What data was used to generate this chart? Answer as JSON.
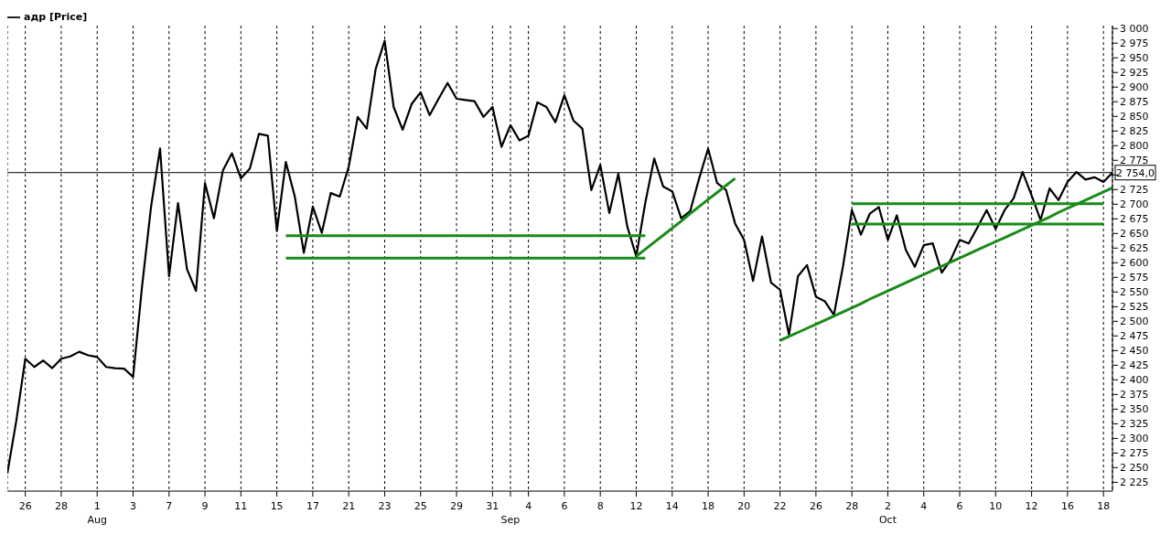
{
  "chart_data": {
    "type": "line",
    "legend": "top left",
    "grid": "x",
    "line_style": "solid",
    "marker": "none",
    "categories": [
      null,
      null,
      "26",
      null,
      null,
      null,
      "28",
      null,
      null,
      null,
      "1\nAug",
      null,
      null,
      null,
      "3",
      null,
      null,
      null,
      "7",
      null,
      null,
      null,
      "9",
      null,
      null,
      null,
      "11",
      null,
      null,
      null,
      "15",
      null,
      null,
      null,
      "17",
      null,
      null,
      null,
      "21",
      null,
      null,
      null,
      "23",
      null,
      null,
      null,
      "25",
      null,
      null,
      null,
      "29",
      null,
      null,
      null,
      "31",
      null,
      "\nSep",
      null,
      "4",
      null,
      null,
      null,
      "6",
      null,
      null,
      null,
      "8",
      null,
      null,
      null,
      "12",
      null,
      null,
      null,
      "14",
      null,
      null,
      null,
      "18",
      null,
      null,
      null,
      "20",
      null,
      null,
      null,
      "22",
      null,
      null,
      null,
      "26",
      null,
      null,
      null,
      "28",
      null,
      null,
      null,
      "2\nOct",
      null,
      null,
      null,
      "4",
      null,
      null,
      null,
      "6",
      null,
      null,
      null,
      "10",
      null,
      null,
      null,
      "12",
      null,
      null,
      null,
      "16",
      null,
      null,
      null,
      "18",
      null
    ],
    "ylim": [
      2210,
      3005
    ],
    "yticks": [
      {
        "value": 2225,
        "label": "2 225"
      },
      {
        "value": 2250,
        "label": "2 250"
      },
      {
        "value": 2275,
        "label": "2 275"
      },
      {
        "value": 2300,
        "label": "2 300"
      },
      {
        "value": 2325,
        "label": "2 325"
      },
      {
        "value": 2350,
        "label": "2 350"
      },
      {
        "value": 2375,
        "label": "2 375"
      },
      {
        "value": 2400,
        "label": "2 400"
      },
      {
        "value": 2425,
        "label": "2 425"
      },
      {
        "value": 2450,
        "label": "2 450"
      },
      {
        "value": 2475,
        "label": "2 475"
      },
      {
        "value": 2500,
        "label": "2 500"
      },
      {
        "value": 2525,
        "label": "2 525"
      },
      {
        "value": 2550,
        "label": "2 550"
      },
      {
        "value": 2575,
        "label": "2 575"
      },
      {
        "value": 2600,
        "label": "2 600"
      },
      {
        "value": 2625,
        "label": "2 625"
      },
      {
        "value": 2650,
        "label": "2 650"
      },
      {
        "value": 2675,
        "label": "2 675"
      },
      {
        "value": 2700,
        "label": "2 700"
      },
      {
        "value": 2725,
        "label": "2 725"
      },
      {
        "value": 2750,
        "label": null
      },
      {
        "value": 2775,
        "label": "2 775"
      },
      {
        "value": 2800,
        "label": "2 800"
      },
      {
        "value": 2825,
        "label": "2 825"
      },
      {
        "value": 2850,
        "label": "2 850"
      },
      {
        "value": 2875,
        "label": "2 875"
      },
      {
        "value": 2900,
        "label": "2 900"
      },
      {
        "value": 2925,
        "label": "2 925"
      },
      {
        "value": 2950,
        "label": "2 950"
      },
      {
        "value": 2975,
        "label": "2 975"
      },
      {
        "value": 3000,
        "label": "3 000"
      }
    ],
    "ref_lines": [
      {
        "axis": "y",
        "value": 2754,
        "label": "2 754,0",
        "color": "#000000"
      }
    ],
    "series": [
      {
        "name": "адр [Price]",
        "color": "#000000",
        "values": [
          2240,
          2330,
          2436,
          2422,
          2433,
          2420,
          2436,
          2440,
          2448,
          2442,
          2439,
          2422,
          2420,
          2419,
          2405,
          2560,
          2696,
          2795,
          2577,
          2702,
          2589,
          2552,
          2736,
          2676,
          2758,
          2787,
          2744,
          2761,
          2820,
          2817,
          2654,
          2772,
          2713,
          2617,
          2696,
          2651,
          2719,
          2713,
          2764,
          2849,
          2829,
          2931,
          2979,
          2866,
          2827,
          2871,
          2891,
          2852,
          2880,
          2907,
          2880,
          2878,
          2876,
          2849,
          2866,
          2798,
          2835,
          2809,
          2817,
          2874,
          2866,
          2840,
          2886,
          2843,
          2829,
          2724,
          2767,
          2685,
          2752,
          2662,
          2611,
          2702,
          2778,
          2730,
          2722,
          2676,
          2688,
          2744,
          2795,
          2736,
          2724,
          2667,
          2639,
          2569,
          2645,
          2566,
          2554,
          2477,
          2577,
          2596,
          2542,
          2534,
          2511,
          2593,
          2690,
          2648,
          2684,
          2695,
          2639,
          2681,
          2622,
          2593,
          2630,
          2633,
          2583,
          2605,
          2639,
          2633,
          2661,
          2690,
          2658,
          2690,
          2710,
          2755,
          2715,
          2673,
          2727,
          2707,
          2738,
          2755,
          2742,
          2746,
          2738,
          2754
        ]
      },
      {
        "color": "#1a8a1a",
        "values": [
          null,
          null,
          null,
          null,
          null,
          null,
          null,
          null,
          null,
          null,
          null,
          null,
          null,
          null,
          null,
          null,
          null,
          null,
          null,
          null,
          null,
          null,
          null,
          null,
          null,
          null,
          null,
          null,
          null,
          null,
          null,
          2646,
          2646,
          2646,
          2646,
          2646,
          2646,
          2646,
          2646,
          2646,
          2646,
          2646,
          2646,
          2646,
          2646,
          2646,
          2646,
          2646,
          2646,
          2646,
          2646,
          2646,
          2646,
          2646,
          2646,
          2646,
          2646,
          2646,
          2646,
          2646,
          2646,
          2646,
          2646,
          2646,
          2646,
          2646,
          2646,
          2646,
          2646,
          2646,
          2646,
          2646,
          null,
          null,
          null,
          null,
          null,
          null,
          null,
          null,
          null,
          null,
          null,
          null,
          null,
          null,
          null,
          null,
          null,
          null,
          null,
          null,
          null,
          null,
          null,
          null,
          null,
          null,
          null,
          null,
          null,
          null,
          null,
          null,
          null,
          null,
          null,
          null,
          null,
          null,
          null,
          null,
          null,
          null,
          null,
          null,
          null,
          null,
          null,
          null,
          null,
          null,
          null,
          null
        ]
      },
      {
        "color": "#1a8a1a",
        "values": [
          null,
          null,
          null,
          null,
          null,
          null,
          null,
          null,
          null,
          null,
          null,
          null,
          null,
          null,
          null,
          null,
          null,
          null,
          null,
          null,
          null,
          null,
          null,
          null,
          null,
          null,
          null,
          null,
          null,
          null,
          null,
          2608,
          2608,
          2608,
          2608,
          2608,
          2608,
          2608,
          2608,
          2608,
          2608,
          2608,
          2608,
          2608,
          2608,
          2608,
          2608,
          2608,
          2608,
          2608,
          2608,
          2608,
          2608,
          2608,
          2608,
          2608,
          2608,
          2608,
          2608,
          2608,
          2608,
          2608,
          2608,
          2608,
          2608,
          2608,
          2608,
          2608,
          2608,
          2608,
          2608,
          2608,
          null,
          null,
          null,
          null,
          null,
          null,
          null,
          null,
          null,
          null,
          null,
          null,
          null,
          null,
          null,
          null,
          null,
          null,
          null,
          null,
          null,
          null,
          null,
          null,
          null,
          null,
          null,
          null,
          null,
          null,
          null,
          null,
          null,
          null,
          null,
          null,
          null,
          null,
          null,
          null,
          null,
          null,
          null,
          null,
          null,
          null,
          null,
          null,
          null,
          null,
          null,
          null
        ]
      },
      {
        "color": "#1a8a1a",
        "values": [
          null,
          null,
          null,
          null,
          null,
          null,
          null,
          null,
          null,
          null,
          null,
          null,
          null,
          null,
          null,
          null,
          null,
          null,
          null,
          null,
          null,
          null,
          null,
          null,
          null,
          null,
          null,
          null,
          null,
          null,
          null,
          null,
          null,
          null,
          null,
          null,
          null,
          null,
          null,
          null,
          null,
          null,
          null,
          null,
          null,
          null,
          null,
          null,
          null,
          null,
          null,
          null,
          null,
          null,
          null,
          null,
          null,
          null,
          null,
          null,
          null,
          null,
          null,
          null,
          null,
          null,
          null,
          null,
          null,
          null,
          null,
          null,
          null,
          null,
          null,
          null,
          null,
          null,
          null,
          null,
          null,
          null,
          null,
          null,
          null,
          null,
          null,
          null,
          null,
          null,
          null,
          null,
          null,
          null,
          2701,
          2701,
          2701,
          2701,
          2701,
          2701,
          2701,
          2701,
          2701,
          2701,
          2701,
          2701,
          2701,
          2701,
          2701,
          2701,
          2701,
          2701,
          2701,
          2701,
          2701,
          2701,
          2701,
          2701,
          2701,
          2701,
          2701,
          2701,
          2701,
          null
        ]
      },
      {
        "color": "#1a8a1a",
        "values": [
          null,
          null,
          null,
          null,
          null,
          null,
          null,
          null,
          null,
          null,
          null,
          null,
          null,
          null,
          null,
          null,
          null,
          null,
          null,
          null,
          null,
          null,
          null,
          null,
          null,
          null,
          null,
          null,
          null,
          null,
          null,
          null,
          null,
          null,
          null,
          null,
          null,
          null,
          null,
          null,
          null,
          null,
          null,
          null,
          null,
          null,
          null,
          null,
          null,
          null,
          null,
          null,
          null,
          null,
          null,
          null,
          null,
          null,
          null,
          null,
          null,
          null,
          null,
          null,
          null,
          null,
          null,
          null,
          null,
          null,
          null,
          null,
          null,
          null,
          null,
          null,
          null,
          null,
          null,
          null,
          null,
          null,
          null,
          null,
          null,
          null,
          null,
          null,
          null,
          null,
          null,
          null,
          null,
          null,
          2666,
          2666,
          2666,
          2666,
          2666,
          2666,
          2666,
          2666,
          2666,
          2666,
          2666,
          2666,
          2666,
          2666,
          2666,
          2666,
          2666,
          2666,
          2666,
          2666,
          2666,
          2666,
          2666,
          2666,
          2666,
          2666,
          2666,
          2666,
          2666,
          null
        ]
      },
      {
        "color": "#1a8a1a",
        "values": [
          null,
          null,
          null,
          null,
          null,
          null,
          null,
          null,
          null,
          null,
          null,
          null,
          null,
          null,
          null,
          null,
          null,
          null,
          null,
          null,
          null,
          null,
          null,
          null,
          null,
          null,
          null,
          null,
          null,
          null,
          null,
          null,
          null,
          null,
          null,
          null,
          null,
          null,
          null,
          null,
          null,
          null,
          null,
          null,
          null,
          null,
          null,
          null,
          null,
          null,
          null,
          null,
          null,
          null,
          null,
          null,
          null,
          null,
          null,
          null,
          null,
          null,
          null,
          null,
          null,
          null,
          null,
          null,
          null,
          null,
          2611,
          2623,
          2635,
          2647,
          2659,
          2671,
          2684,
          2696,
          2708,
          2720,
          2732,
          2744,
          null,
          null,
          null,
          null,
          null,
          null,
          null,
          null,
          null,
          null,
          null,
          null,
          null,
          null,
          null,
          null,
          null,
          null,
          null,
          null,
          null,
          null,
          null,
          null,
          null,
          null,
          null,
          null,
          null,
          null,
          null,
          null,
          null,
          null,
          null,
          null,
          null,
          null,
          null,
          null,
          null,
          null
        ]
      },
      {
        "color": "#1a8a1a",
        "values": [
          null,
          null,
          null,
          null,
          null,
          null,
          null,
          null,
          null,
          null,
          null,
          null,
          null,
          null,
          null,
          null,
          null,
          null,
          null,
          null,
          null,
          null,
          null,
          null,
          null,
          null,
          null,
          null,
          null,
          null,
          null,
          null,
          null,
          null,
          null,
          null,
          null,
          null,
          null,
          null,
          null,
          null,
          null,
          null,
          null,
          null,
          null,
          null,
          null,
          null,
          null,
          null,
          null,
          null,
          null,
          null,
          null,
          null,
          null,
          null,
          null,
          null,
          null,
          null,
          null,
          null,
          null,
          null,
          null,
          null,
          null,
          null,
          null,
          null,
          null,
          null,
          null,
          null,
          null,
          null,
          null,
          null,
          null,
          null,
          null,
          null,
          2467,
          2474,
          2481,
          2488,
          2495,
          2502,
          2509,
          2516,
          2523,
          2530,
          2538,
          2545,
          2552,
          2559,
          2566,
          2573,
          2580,
          2587,
          2594,
          2601,
          2608,
          2615,
          2622,
          2629,
          2636,
          2643,
          2650,
          2657,
          2664,
          2671,
          2678,
          2686,
          2693,
          2700,
          2707,
          2714,
          2721,
          2728
        ]
      }
    ]
  }
}
